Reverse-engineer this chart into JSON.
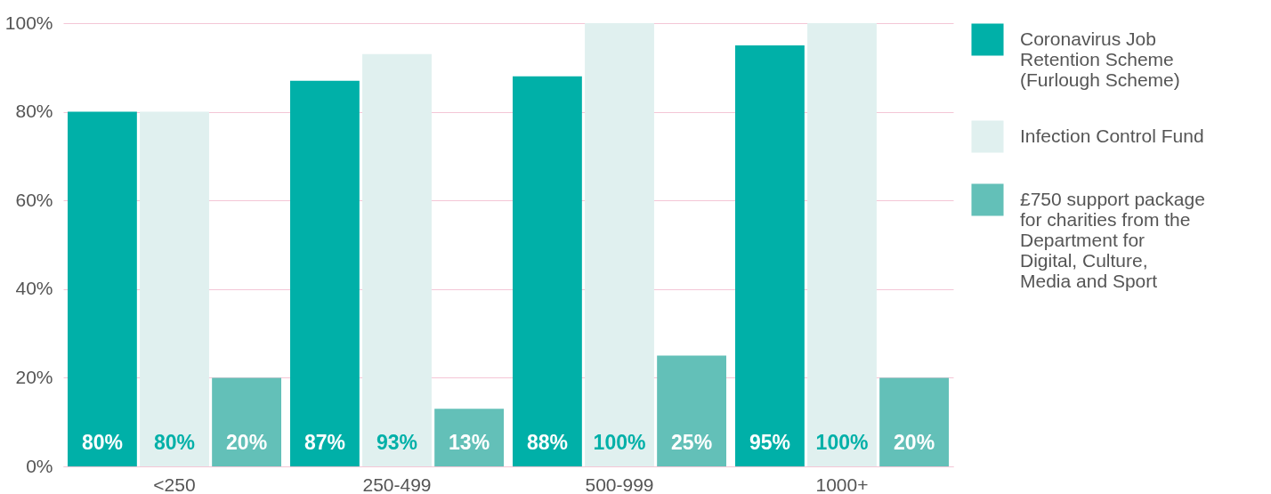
{
  "chart_data": {
    "type": "bar",
    "categories": [
      "<250",
      "250-499",
      "500-999",
      "1000+"
    ],
    "series": [
      {
        "name": "Coronavirus Job Retention Scheme (Furlough Scheme)",
        "color": "#00b0a8",
        "values": [
          80,
          87,
          88,
          95
        ],
        "value_labels": [
          "80%",
          "87%",
          "88%",
          "95%"
        ]
      },
      {
        "name": "Infection Control Fund",
        "color": "#e0f0ef",
        "values": [
          80,
          93,
          100,
          100
        ],
        "value_labels": [
          "80%",
          "93%",
          "100%",
          "100%"
        ]
      },
      {
        "name": "£750 support package for charities from the Department for Digital, Culture, Media and Sport",
        "color": "#63c0b8",
        "values": [
          20,
          13,
          25,
          20
        ],
        "value_labels": [
          "20%",
          "13%",
          "25%",
          "20%"
        ]
      }
    ],
    "ylim": [
      0,
      100
    ],
    "yticks": [
      {
        "value": 0,
        "label": "0%"
      },
      {
        "value": 20,
        "label": "20%"
      },
      {
        "value": 40,
        "label": "40%"
      },
      {
        "value": 60,
        "label": "60%"
      },
      {
        "value": 80,
        "label": "80%"
      },
      {
        "value": 100,
        "label": "100%"
      }
    ],
    "grid": "y",
    "legend": "right"
  }
}
